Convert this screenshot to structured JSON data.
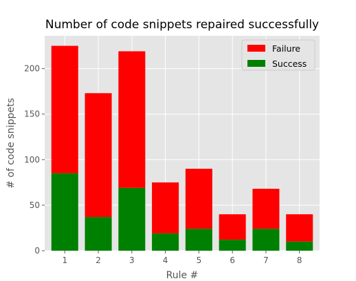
{
  "chart_data": {
    "type": "bar",
    "stacked": true,
    "title": "Number of code snippets repaired successfully",
    "xlabel": "Rule #",
    "ylabel": "# of code snippets",
    "categories": [
      "1",
      "2",
      "3",
      "4",
      "5",
      "6",
      "7",
      "8"
    ],
    "series": [
      {
        "name": "Success",
        "color": "#008000",
        "values": [
          85,
          37,
          69,
          19,
          24,
          12,
          24,
          10
        ]
      },
      {
        "name": "Failure",
        "color": "#ff0000",
        "values": [
          140,
          136,
          150,
          56,
          66,
          28,
          44,
          30
        ]
      }
    ],
    "totals": [
      225,
      173,
      219,
      75,
      90,
      40,
      68,
      40
    ],
    "ylim": [
      0,
      236
    ],
    "yticks": [
      0,
      50,
      100,
      150,
      200
    ],
    "grid": true,
    "legend_position": "top-right",
    "legend_order": [
      "Failure",
      "Success"
    ],
    "background_color": "#e5e5e5",
    "grid_color": "#ffffff"
  }
}
